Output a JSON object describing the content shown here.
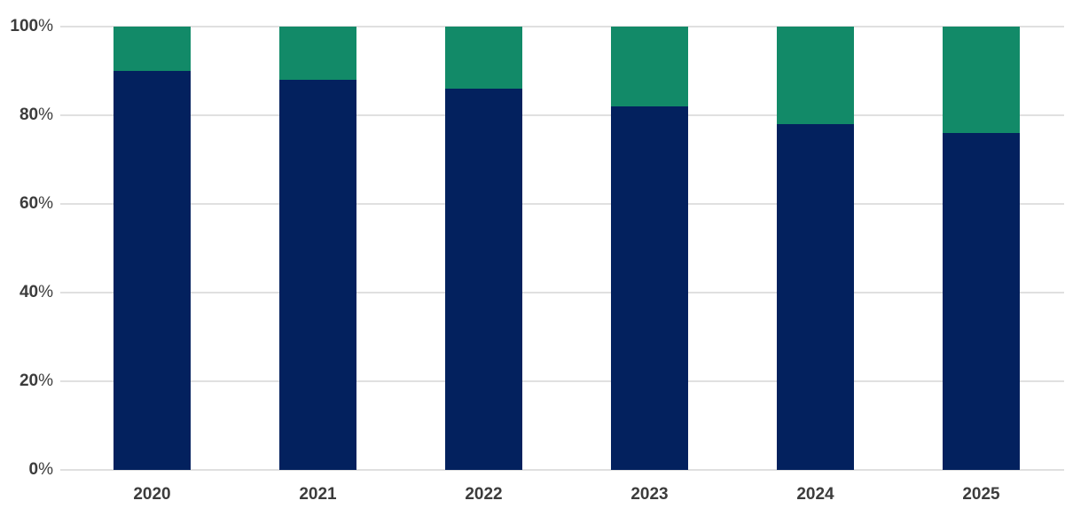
{
  "chart_data": {
    "type": "bar",
    "stacked": true,
    "stacked_total": 100,
    "title": "",
    "xlabel": "",
    "ylabel": "",
    "categories": [
      "2020",
      "2021",
      "2022",
      "2023",
      "2024",
      "2025"
    ],
    "series": [
      {
        "name": "bottom-segment",
        "color": "#03215e",
        "values": [
          90,
          88,
          86,
          82,
          78,
          76
        ]
      },
      {
        "name": "top-segment",
        "color": "#128a68",
        "values": [
          10,
          12,
          14,
          18,
          22,
          24
        ]
      }
    ],
    "ylim": [
      0,
      100
    ],
    "y_ticks": [
      "0%",
      "20%",
      "40%",
      "60%",
      "80%",
      "100%"
    ],
    "y_tick_values": [
      0,
      20,
      40,
      60,
      80,
      100
    ],
    "grid": true,
    "legend": "none"
  },
  "style": {
    "background": "#ffffff",
    "gridline_color": "#e0e0e0",
    "text_color": "#3c3c3c"
  }
}
